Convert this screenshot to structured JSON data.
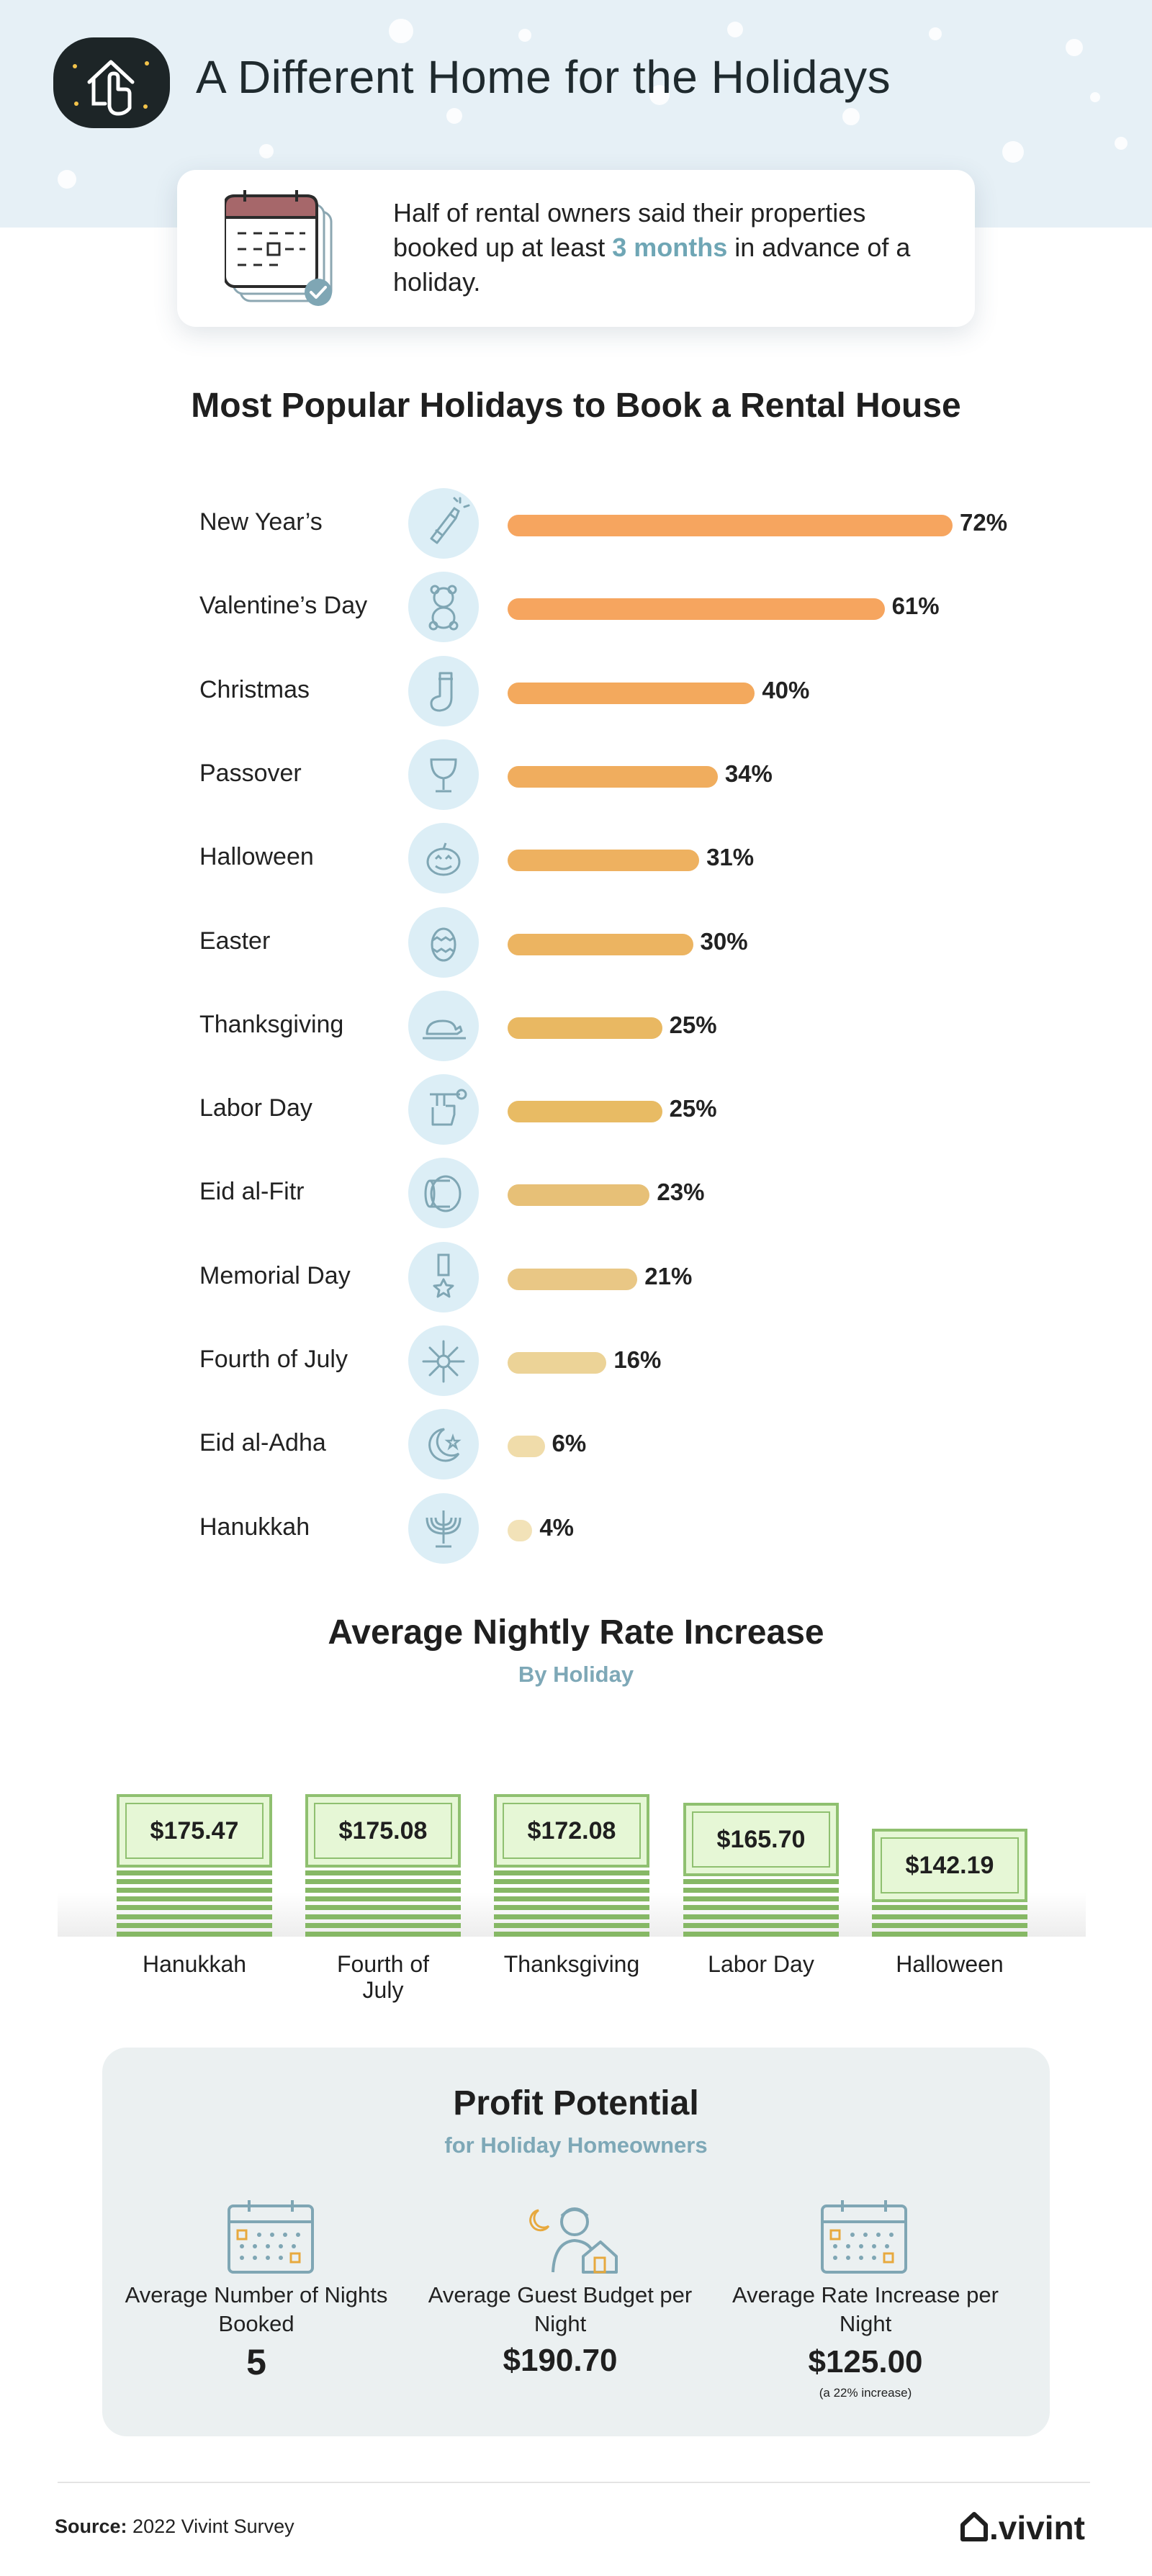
{
  "header": {
    "title": "A Different Home for the Holidays",
    "logo": "house-pointer-icon"
  },
  "summary": {
    "text_before": "Half of rental owners said their properties booked up at least ",
    "highlight": "3 months",
    "text_after": " in advance of a holiday.",
    "icon": "calendar-stack-icon",
    "highlight_color": "#6fa6b5"
  },
  "chart_data": [
    {
      "type": "bar",
      "orientation": "horizontal",
      "title": "Most Popular Holidays to Book a Rental House",
      "categories": [
        "New Year’s",
        "Valentine’s Day",
        "Christmas",
        "Passover",
        "Halloween",
        "Easter",
        "Thanksgiving",
        "Labor Day",
        "Eid al-Fitr",
        "Memorial Day",
        "Fourth of July",
        "Eid al-Adha",
        "Hanukkah"
      ],
      "values": [
        72,
        61,
        40,
        34,
        31,
        30,
        25,
        25,
        23,
        21,
        16,
        6,
        4
      ],
      "value_labels": [
        "72%",
        "61%",
        "40%",
        "34%",
        "31%",
        "30%",
        "25%",
        "25%",
        "23%",
        "21%",
        "16%",
        "6%",
        "4%"
      ],
      "icons": [
        "champagne-icon",
        "teddy-bear-icon",
        "stocking-icon",
        "goblet-icon",
        "pumpkin-icon",
        "easter-egg-icon",
        "turkey-icon",
        "wrench-fist-icon",
        "drum-icon",
        "medal-icon",
        "fireworks-icon",
        "crescent-star-icon",
        "menorah-icon"
      ],
      "colors": [
        "#f6a55f",
        "#f6a55f",
        "#f3a95d",
        "#f0ad5e",
        "#eeb160",
        "#ecb461",
        "#e9b862",
        "#e8bb64",
        "#e7c077",
        "#e9c785",
        "#ecd397",
        "#f0dcaa",
        "#f2e2b8"
      ],
      "xlim": [
        0,
        72
      ]
    },
    {
      "type": "bar",
      "title": "Average Nightly Rate Increase",
      "subtitle": "By Holiday",
      "categories": [
        "Hanukkah",
        "Fourth of July",
        "Thanksgiving",
        "Labor Day",
        "Halloween"
      ],
      "values": [
        175.47,
        175.08,
        172.08,
        165.7,
        142.19
      ],
      "value_labels": [
        "$175.47",
        "$175.08",
        "$172.08",
        "$165.70",
        "$142.19"
      ],
      "colors": {
        "bill_fill": "#e6f7d6",
        "bill_border": "#8fc070",
        "stripe": "#86b865"
      }
    }
  ],
  "profit": {
    "title": "Profit Potential",
    "subtitle": "for Holiday Homeowners",
    "items": [
      {
        "label": "Average Number of Nights Booked",
        "value": "5",
        "note": "",
        "icon": "calendar-icon"
      },
      {
        "label": "Average Guest Budget per Night",
        "value": "$190.70",
        "note": "",
        "icon": "guest-house-icon"
      },
      {
        "label": "Average Rate Increase per Night",
        "value": "$125.00",
        "note": "(a 22% increase)",
        "icon": "calendar-icon"
      }
    ]
  },
  "footer": {
    "source_label": "Source:",
    "source_text": "2022 Vivint Survey",
    "brand": "vivint"
  },
  "colors": {
    "header_bg": "#e6f0f6",
    "icon_circle": "#dceef6",
    "panel_bg": "#ebf0f1",
    "subtitle": "#7ea8b7"
  }
}
